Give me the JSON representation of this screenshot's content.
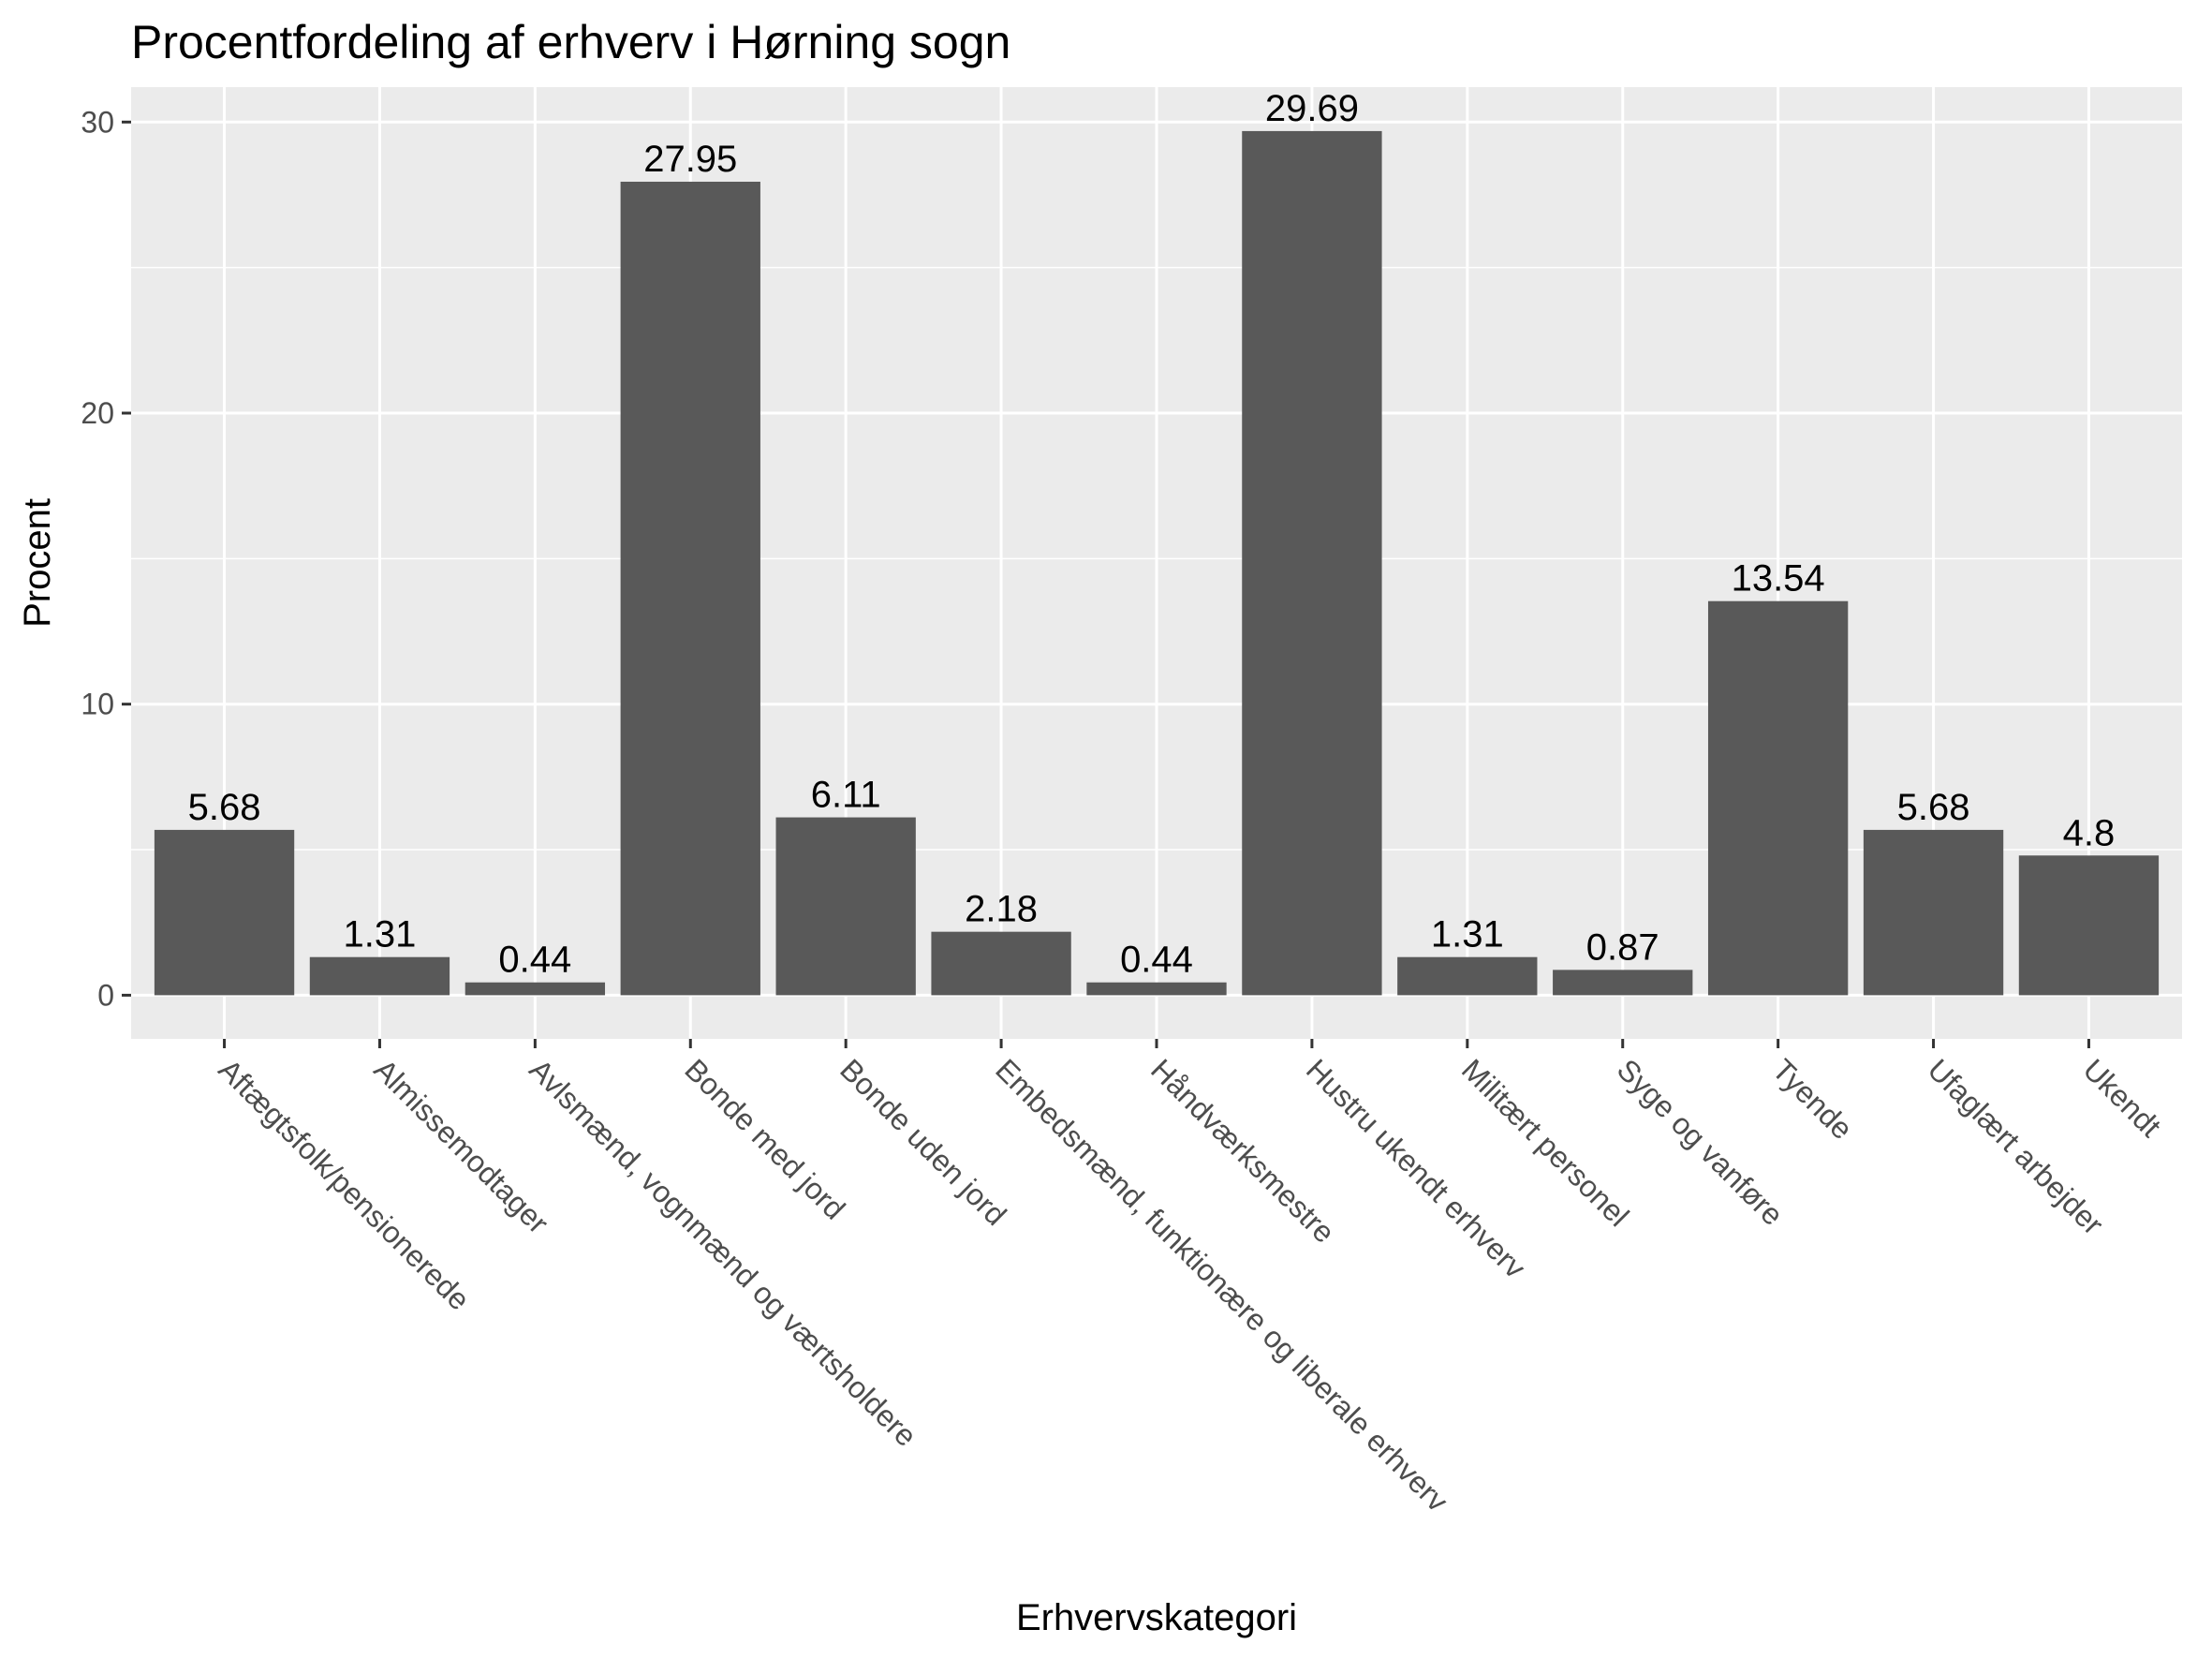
{
  "chart_data": {
    "type": "bar",
    "title": "Procentfordeling af erhverv i Hørning sogn",
    "xlabel": "Erhvervskategori",
    "ylabel": "Procent",
    "ylim": [
      -1.5,
      31.2
    ],
    "yticks": [
      0,
      10,
      20,
      30
    ],
    "ytick_labels": [
      "0",
      "10",
      "20",
      "30"
    ],
    "grid": true,
    "categories": [
      "Aftægtsfolk/pensionerede",
      "Almissemodtager",
      "Avlsmænd, vognmænd og værtsholdere",
      "Bonde med jord",
      "Bonde uden jord",
      "Embedsmænd, funktionære og liberale erhverv",
      "Håndværksmestre",
      "Hustru ukendt erhverv",
      "Militært personel",
      "Syge og vanføre",
      "Tyende",
      "Ufaglært arbejder",
      "Ukendt"
    ],
    "values": [
      5.68,
      1.31,
      0.44,
      27.95,
      6.11,
      2.18,
      0.44,
      29.69,
      1.31,
      0.87,
      13.54,
      5.68,
      4.8
    ],
    "data_labels": [
      "5.68",
      "1.31",
      "0.44",
      "27.95",
      "6.11",
      "2.18",
      "0.44",
      "29.69",
      "1.31",
      "0.87",
      "13.54",
      "5.68",
      "4.8"
    ],
    "colors": {
      "bar": "#595959",
      "panel": "#ebebeb",
      "grid": "#ffffff",
      "tick_text": "#4d4d4d",
      "tick_mark": "#333333"
    }
  }
}
